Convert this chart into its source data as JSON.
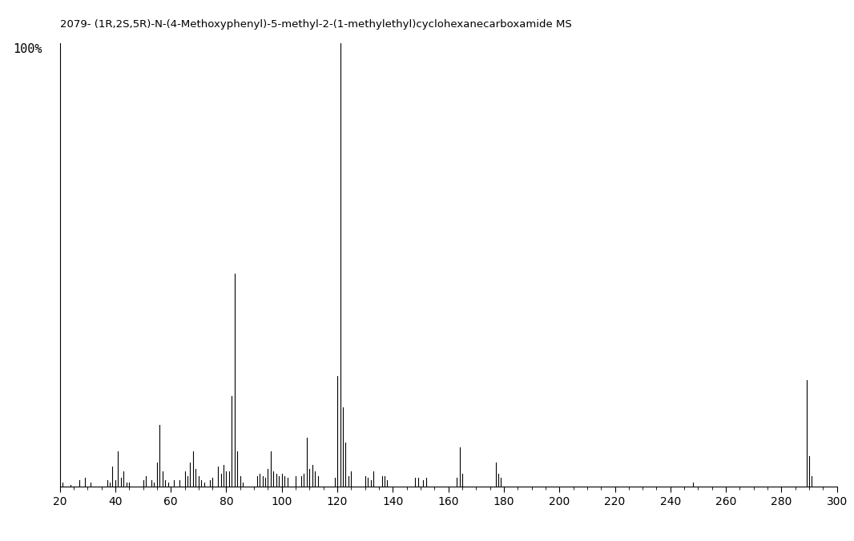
{
  "title": "2079- (1R,2S,5R)-N-(4-Methoxyphenyl)-5-methyl-2-(1-methylethyl)cyclohexanecarboxamide MS",
  "xlim": [
    20,
    300
  ],
  "ylim": [
    0,
    100
  ],
  "xticks": [
    20,
    40,
    60,
    80,
    100,
    120,
    140,
    160,
    180,
    200,
    220,
    240,
    260,
    280,
    300
  ],
  "background_color": "#ffffff",
  "peaks": [
    [
      21,
      1.0
    ],
    [
      24,
      0.5
    ],
    [
      27,
      1.5
    ],
    [
      29,
      2.0
    ],
    [
      31,
      1.0
    ],
    [
      37,
      1.5
    ],
    [
      38,
      1.0
    ],
    [
      39,
      4.5
    ],
    [
      40,
      1.5
    ],
    [
      41,
      8.0
    ],
    [
      42,
      2.0
    ],
    [
      43,
      3.5
    ],
    [
      44,
      1.0
    ],
    [
      45,
      1.0
    ],
    [
      50,
      1.5
    ],
    [
      51,
      2.5
    ],
    [
      53,
      1.5
    ],
    [
      54,
      1.0
    ],
    [
      55,
      5.5
    ],
    [
      56,
      14.0
    ],
    [
      57,
      3.5
    ],
    [
      58,
      1.5
    ],
    [
      59,
      1.0
    ],
    [
      61,
      1.5
    ],
    [
      63,
      1.5
    ],
    [
      65,
      3.5
    ],
    [
      66,
      2.5
    ],
    [
      67,
      5.5
    ],
    [
      68,
      8.0
    ],
    [
      69,
      4.0
    ],
    [
      70,
      2.5
    ],
    [
      71,
      1.5
    ],
    [
      72,
      1.0
    ],
    [
      74,
      1.5
    ],
    [
      75,
      2.0
    ],
    [
      77,
      4.5
    ],
    [
      78,
      3.0
    ],
    [
      79,
      5.0
    ],
    [
      80,
      3.5
    ],
    [
      81,
      3.5
    ],
    [
      82,
      20.5
    ],
    [
      83,
      48.0
    ],
    [
      84,
      8.0
    ],
    [
      85,
      2.5
    ],
    [
      86,
      1.0
    ],
    [
      91,
      2.5
    ],
    [
      92,
      3.0
    ],
    [
      93,
      2.5
    ],
    [
      94,
      2.0
    ],
    [
      95,
      4.0
    ],
    [
      96,
      8.0
    ],
    [
      97,
      3.5
    ],
    [
      98,
      3.0
    ],
    [
      99,
      2.5
    ],
    [
      100,
      3.0
    ],
    [
      101,
      2.5
    ],
    [
      102,
      2.0
    ],
    [
      105,
      2.5
    ],
    [
      107,
      2.5
    ],
    [
      108,
      3.0
    ],
    [
      109,
      11.0
    ],
    [
      110,
      4.0
    ],
    [
      111,
      5.0
    ],
    [
      112,
      3.5
    ],
    [
      113,
      2.5
    ],
    [
      119,
      2.0
    ],
    [
      120,
      25.0
    ],
    [
      121,
      100.0
    ],
    [
      122,
      18.0
    ],
    [
      123,
      10.0
    ],
    [
      124,
      2.5
    ],
    [
      125,
      3.5
    ],
    [
      130,
      2.5
    ],
    [
      131,
      2.0
    ],
    [
      132,
      1.5
    ],
    [
      133,
      3.5
    ],
    [
      136,
      2.5
    ],
    [
      137,
      2.5
    ],
    [
      138,
      1.5
    ],
    [
      148,
      2.0
    ],
    [
      149,
      2.0
    ],
    [
      151,
      1.5
    ],
    [
      152,
      2.0
    ],
    [
      163,
      2.0
    ],
    [
      164,
      9.0
    ],
    [
      165,
      3.0
    ],
    [
      177,
      5.5
    ],
    [
      178,
      3.0
    ],
    [
      179,
      2.0
    ],
    [
      248,
      1.0
    ],
    [
      289,
      24.0
    ],
    [
      290,
      7.0
    ],
    [
      291,
      2.5
    ]
  ]
}
